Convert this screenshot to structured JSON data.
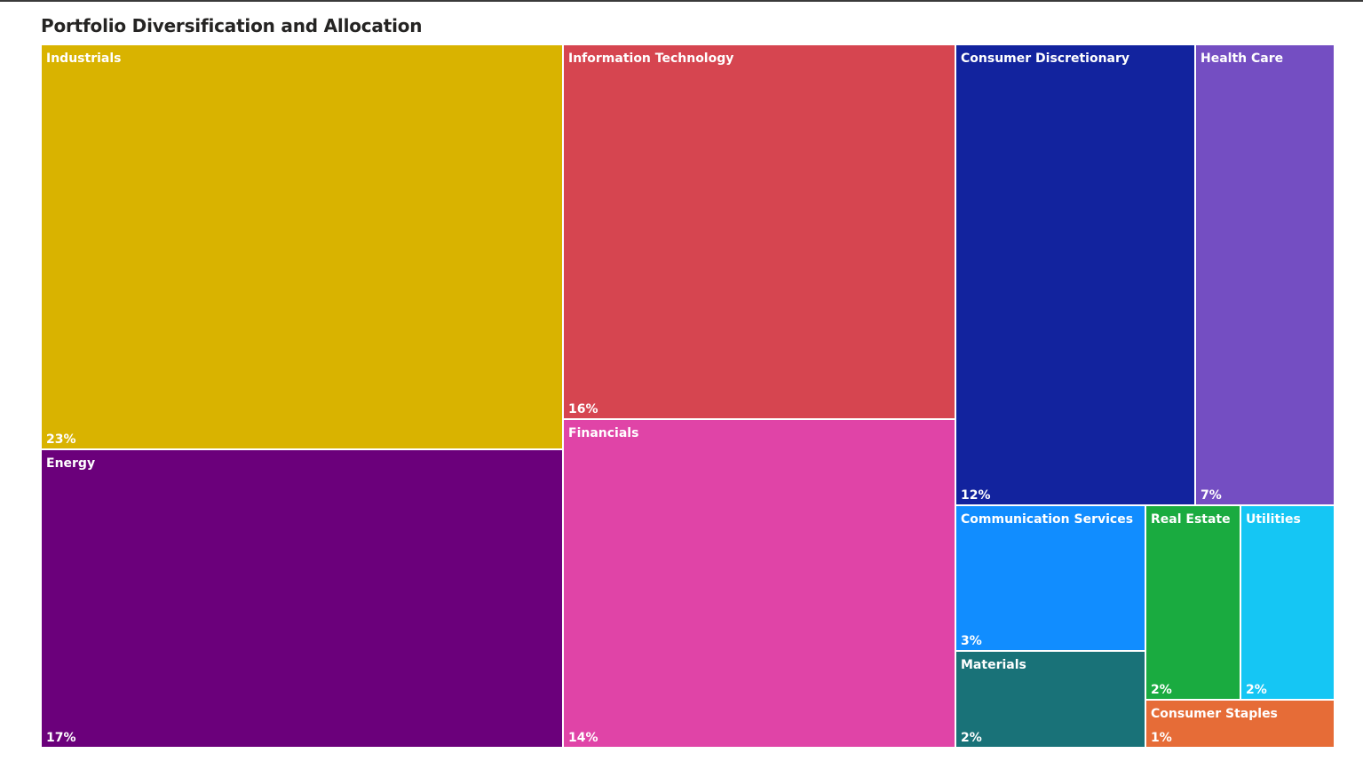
{
  "chart_data": {
    "type": "treemap",
    "title": "Portfolio Diversification and Allocation",
    "categories": [
      "Industrials",
      "Information Technology",
      "Consumer Discretionary",
      "Health Care",
      "Energy",
      "Financials",
      "Communication Services",
      "Real Estate",
      "Utilities",
      "Materials",
      "Consumer Staples"
    ],
    "values": [
      23,
      16,
      12,
      7,
      17,
      14,
      3,
      2,
      2,
      2,
      1
    ],
    "labels": [
      "23%",
      "16%",
      "12%",
      "7%",
      "17%",
      "14%",
      "3%",
      "2%",
      "2%",
      "2%",
      "1%"
    ],
    "value_unit": "%",
    "colors": [
      "#D9B300",
      "#D64550",
      "#12239E",
      "#744EC2",
      "#6B007B",
      "#E044A7",
      "#118DFF",
      "#1AAB40",
      "#15C6F4",
      "#197278",
      "#E66C37"
    ]
  }
}
